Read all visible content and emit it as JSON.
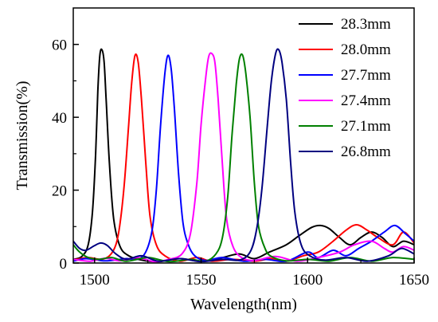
{
  "chart_data": {
    "type": "line",
    "title": "",
    "xlabel": "Wavelength(nm)",
    "ylabel": "Transmission(%)",
    "xlim": [
      1490,
      1650
    ],
    "ylim": [
      0,
      70
    ],
    "x_ticks": [
      "1500",
      "1550",
      "1600",
      "1650"
    ],
    "x_tick_values": [
      1500,
      1550,
      1600,
      1650
    ],
    "y_ticks": [
      "0",
      "20",
      "40",
      "60"
    ],
    "y_tick_values": [
      0,
      20,
      40,
      60
    ],
    "legend_position": "top-right",
    "series": [
      {
        "name": "28.3mm",
        "color": "#000000",
        "points": [
          [
            1490,
            1.0
          ],
          [
            1494,
            1.8
          ],
          [
            1497,
            5
          ],
          [
            1499,
            14
          ],
          [
            1500.5,
            30
          ],
          [
            1501.5,
            47
          ],
          [
            1502.5,
            57
          ],
          [
            1503.5,
            58.5
          ],
          [
            1504.5,
            55
          ],
          [
            1505.5,
            44
          ],
          [
            1507,
            27
          ],
          [
            1509,
            12
          ],
          [
            1512,
            4.5
          ],
          [
            1516,
            2
          ],
          [
            1522,
            0.8
          ],
          [
            1530,
            0.4
          ],
          [
            1540,
            1.2
          ],
          [
            1550,
            0.5
          ],
          [
            1560,
            1.5
          ],
          [
            1568,
            2.5
          ],
          [
            1575,
            1.2
          ],
          [
            1582,
            3
          ],
          [
            1590,
            5
          ],
          [
            1596,
            7.5
          ],
          [
            1602,
            9.8
          ],
          [
            1606,
            10.3
          ],
          [
            1610,
            9.5
          ],
          [
            1615,
            7
          ],
          [
            1620,
            5
          ],
          [
            1625,
            7
          ],
          [
            1630,
            8.5
          ],
          [
            1635,
            7
          ],
          [
            1640,
            4.5
          ],
          [
            1645,
            6
          ],
          [
            1650,
            5
          ]
        ]
      },
      {
        "name": "28.0mm",
        "color": "#ff0000",
        "points": [
          [
            1490,
            0.8
          ],
          [
            1497,
            1.5
          ],
          [
            1503,
            1
          ],
          [
            1507,
            2
          ],
          [
            1510,
            5
          ],
          [
            1512,
            11
          ],
          [
            1514,
            22
          ],
          [
            1516,
            38
          ],
          [
            1517.5,
            50
          ],
          [
            1519,
            57
          ],
          [
            1520.5,
            55
          ],
          [
            1522,
            45
          ],
          [
            1524,
            28
          ],
          [
            1526,
            13
          ],
          [
            1529,
            5
          ],
          [
            1533,
            2
          ],
          [
            1540,
            0.5
          ],
          [
            1548,
            1.5
          ],
          [
            1555,
            0.5
          ],
          [
            1565,
            1
          ],
          [
            1575,
            0.5
          ],
          [
            1583,
            1.2
          ],
          [
            1590,
            0.5
          ],
          [
            1598,
            2
          ],
          [
            1605,
            3
          ],
          [
            1612,
            6
          ],
          [
            1618,
            9
          ],
          [
            1623,
            10.5
          ],
          [
            1628,
            9
          ],
          [
            1633,
            7
          ],
          [
            1640,
            5
          ],
          [
            1645,
            8.5
          ],
          [
            1650,
            5.5
          ]
        ]
      },
      {
        "name": "27.7mm",
        "color": "#0000ff",
        "points": [
          [
            1490,
            0.5
          ],
          [
            1496,
            1.2
          ],
          [
            1505,
            0.6
          ],
          [
            1515,
            1.2
          ],
          [
            1520,
            1
          ],
          [
            1524,
            3
          ],
          [
            1527,
            9
          ],
          [
            1529,
            20
          ],
          [
            1531,
            38
          ],
          [
            1533,
            52
          ],
          [
            1534.5,
            57
          ],
          [
            1536,
            53
          ],
          [
            1537.5,
            42
          ],
          [
            1539.5,
            24
          ],
          [
            1541.5,
            11
          ],
          [
            1544,
            5
          ],
          [
            1547,
            2
          ],
          [
            1552,
            0.7
          ],
          [
            1560,
            1.5
          ],
          [
            1570,
            0.5
          ],
          [
            1580,
            1
          ],
          [
            1590,
            0.5
          ],
          [
            1600,
            3
          ],
          [
            1605,
            1.5
          ],
          [
            1612,
            3.5
          ],
          [
            1618,
            2
          ],
          [
            1624,
            4
          ],
          [
            1630,
            6
          ],
          [
            1636,
            8.5
          ],
          [
            1641,
            10.3
          ],
          [
            1646,
            8
          ],
          [
            1650,
            6
          ]
        ]
      },
      {
        "name": "27.4mm",
        "color": "#ff00ff",
        "points": [
          [
            1490,
            1
          ],
          [
            1498,
            0.5
          ],
          [
            1505,
            1.3
          ],
          [
            1512,
            0.6
          ],
          [
            1520,
            1.5
          ],
          [
            1528,
            0.4
          ],
          [
            1535,
            1
          ],
          [
            1541,
            2.5
          ],
          [
            1545,
            8
          ],
          [
            1548,
            22
          ],
          [
            1550,
            38
          ],
          [
            1552,
            50
          ],
          [
            1553.5,
            56.5
          ],
          [
            1555,
            57.5
          ],
          [
            1556.5,
            55
          ],
          [
            1558,
            45
          ],
          [
            1560,
            27
          ],
          [
            1562,
            12
          ],
          [
            1565,
            4.5
          ],
          [
            1569,
            1.5
          ],
          [
            1575,
            0.7
          ],
          [
            1585,
            1.8
          ],
          [
            1595,
            0.5
          ],
          [
            1605,
            1.5
          ],
          [
            1615,
            3
          ],
          [
            1622,
            5
          ],
          [
            1630,
            6
          ],
          [
            1636,
            4
          ],
          [
            1640,
            3
          ],
          [
            1645,
            4.5
          ],
          [
            1650,
            3.5
          ]
        ]
      },
      {
        "name": "27.1mm",
        "color": "#008000",
        "points": [
          [
            1490,
            5
          ],
          [
            1493,
            3
          ],
          [
            1497,
            1.5
          ],
          [
            1502,
            1
          ],
          [
            1508,
            1.5
          ],
          [
            1515,
            0.5
          ],
          [
            1525,
            1.5
          ],
          [
            1535,
            0.4
          ],
          [
            1545,
            1
          ],
          [
            1552,
            0.5
          ],
          [
            1557,
            2.5
          ],
          [
            1560,
            7
          ],
          [
            1562.5,
            18
          ],
          [
            1564.5,
            35
          ],
          [
            1566.5,
            49
          ],
          [
            1568,
            56
          ],
          [
            1569.5,
            57
          ],
          [
            1571,
            52
          ],
          [
            1573,
            40
          ],
          [
            1575,
            22
          ],
          [
            1577,
            10
          ],
          [
            1580,
            4
          ],
          [
            1583,
            1.8
          ],
          [
            1590,
            0.6
          ],
          [
            1600,
            1
          ],
          [
            1610,
            0.5
          ],
          [
            1620,
            1.5
          ],
          [
            1630,
            0.5
          ],
          [
            1640,
            1.5
          ],
          [
            1650,
            1
          ]
        ]
      },
      {
        "name": "26.8mm",
        "color": "#000080",
        "points": [
          [
            1490,
            6
          ],
          [
            1493,
            4
          ],
          [
            1496,
            3.5
          ],
          [
            1500,
            4.8
          ],
          [
            1503,
            5.5
          ],
          [
            1506,
            4.8
          ],
          [
            1510,
            2.5
          ],
          [
            1515,
            1
          ],
          [
            1522,
            2
          ],
          [
            1530,
            0.5
          ],
          [
            1540,
            1.2
          ],
          [
            1550,
            0.4
          ],
          [
            1560,
            1
          ],
          [
            1568,
            0.8
          ],
          [
            1573,
            3
          ],
          [
            1576,
            9
          ],
          [
            1578.5,
            20
          ],
          [
            1581,
            37
          ],
          [
            1583,
            50
          ],
          [
            1585,
            57.5
          ],
          [
            1586.5,
            58.5
          ],
          [
            1588,
            55
          ],
          [
            1590,
            45
          ],
          [
            1592,
            28
          ],
          [
            1594,
            14
          ],
          [
            1597,
            5
          ],
          [
            1601,
            2
          ],
          [
            1608,
            0.8
          ],
          [
            1618,
            1.5
          ],
          [
            1628,
            0.5
          ],
          [
            1638,
            2
          ],
          [
            1644,
            4
          ],
          [
            1650,
            2.5
          ]
        ]
      }
    ]
  }
}
